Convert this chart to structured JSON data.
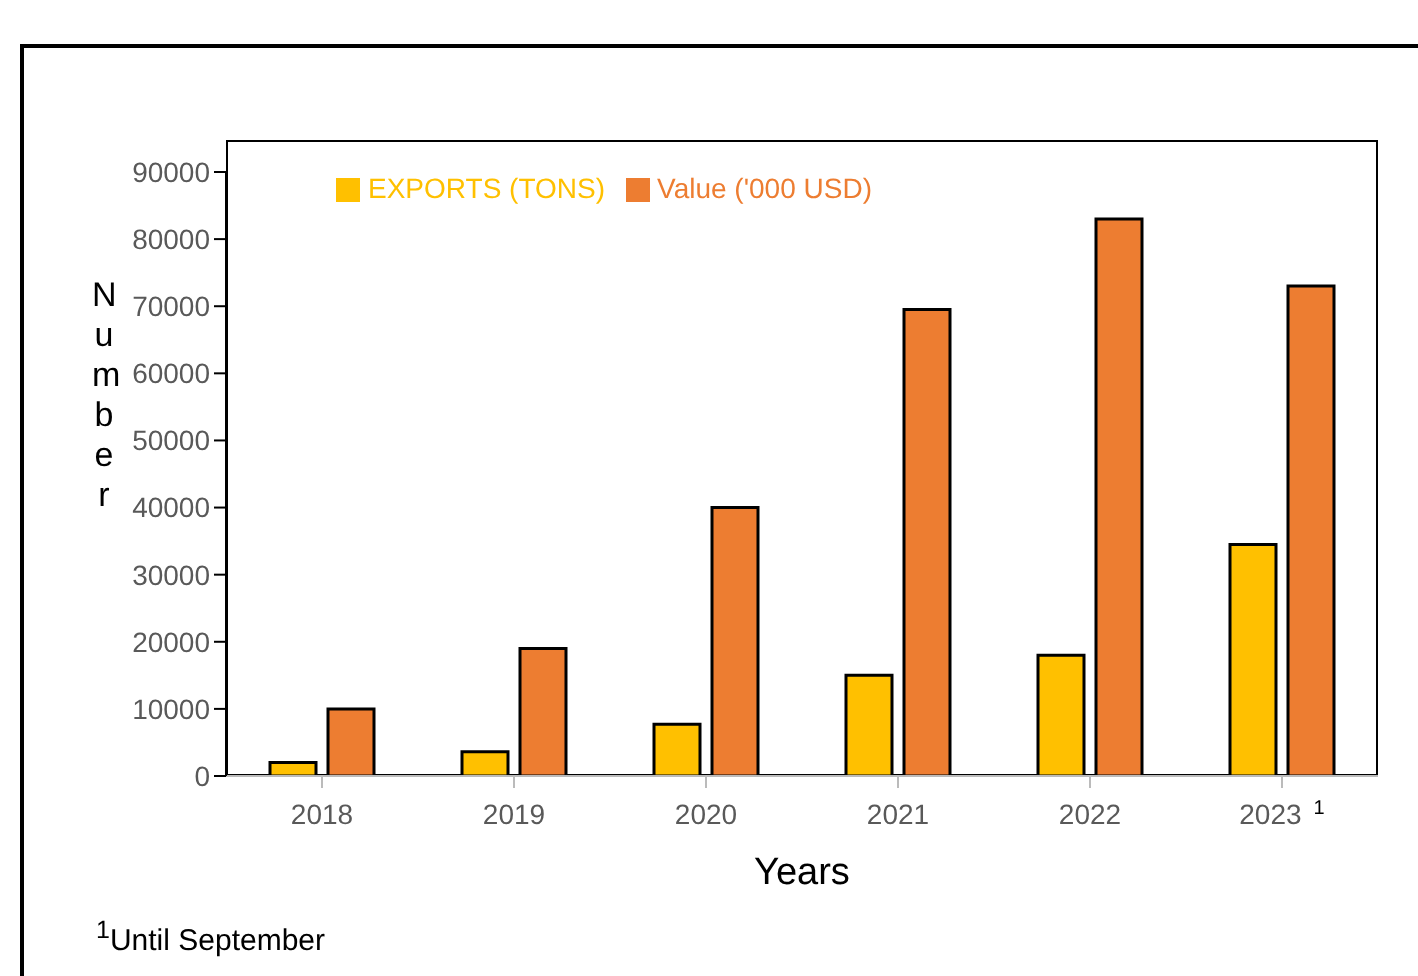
{
  "chart_data": {
    "type": "bar",
    "xlabel": "Years",
    "ylabel": "Number",
    "categories": [
      "2018",
      "2019",
      "2020",
      "2021",
      "2022",
      "2023$^{1}$"
    ],
    "series": [
      {
        "name": "EXPORTS (TONS)",
        "color": "#ffc000",
        "values": [
          2000,
          3600,
          7700,
          15000,
          18000,
          34500
        ]
      },
      {
        "name": "Value ('000 USD)",
        "color": "#ed7d31",
        "values": [
          10000,
          19000,
          40000,
          69500,
          83000,
          73000
        ]
      }
    ],
    "ylim": [
      0,
      90000
    ],
    "yticks": [
      0,
      10000,
      20000,
      30000,
      40000,
      50000,
      60000,
      70000,
      80000,
      90000
    ],
    "grid": false,
    "legend": "top left",
    "annotations": [
      "$^{1}$Until September"
    ]
  }
}
